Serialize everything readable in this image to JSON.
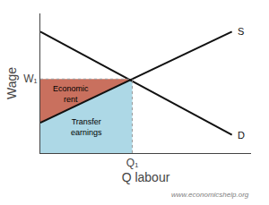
{
  "chart_data": {
    "type": "line",
    "xlabel": "Q labour",
    "ylabel": "Wage",
    "xlim": [
      0,
      11
    ],
    "ylim": [
      0,
      11.5
    ],
    "xticks": [
      {
        "value": 4.8,
        "label": "Q₁"
      }
    ],
    "yticks": [
      {
        "value": 6.1,
        "label": "W₁"
      }
    ],
    "grid": false,
    "annotations": [
      "www.economicshelp.org"
    ],
    "series": [
      {
        "name": "Transfer\nearnings",
        "type": "area",
        "color": "#add8e6",
        "x": [
          0,
          4.8,
          4.8,
          0
        ],
        "values": [
          0,
          0,
          6.1,
          2.5
        ]
      },
      {
        "name": "Economic\nrent",
        "type": "area",
        "color": "#c9705e",
        "x": [
          0,
          4.8,
          0
        ],
        "values": [
          2.5,
          6.1,
          6.1
        ]
      },
      {
        "name": "S",
        "type": "line",
        "color": "#111111",
        "x": [
          0.0,
          10.0
        ],
        "values": [
          2.5,
          10.0
        ]
      },
      {
        "name": "D",
        "type": "line",
        "color": "#111111",
        "x": [
          0.0,
          10.0
        ],
        "values": [
          10.0,
          1.5
        ]
      },
      {
        "type": "line",
        "line_style": "dotted",
        "color": "#999999",
        "x": [
          4.8,
          4.8
        ],
        "values": [
          0,
          6.1
        ]
      },
      {
        "type": "line",
        "line_style": "dotted",
        "color": "#999999",
        "x": [
          0,
          4.8
        ],
        "values": [
          6.1,
          6.1
        ]
      }
    ]
  }
}
